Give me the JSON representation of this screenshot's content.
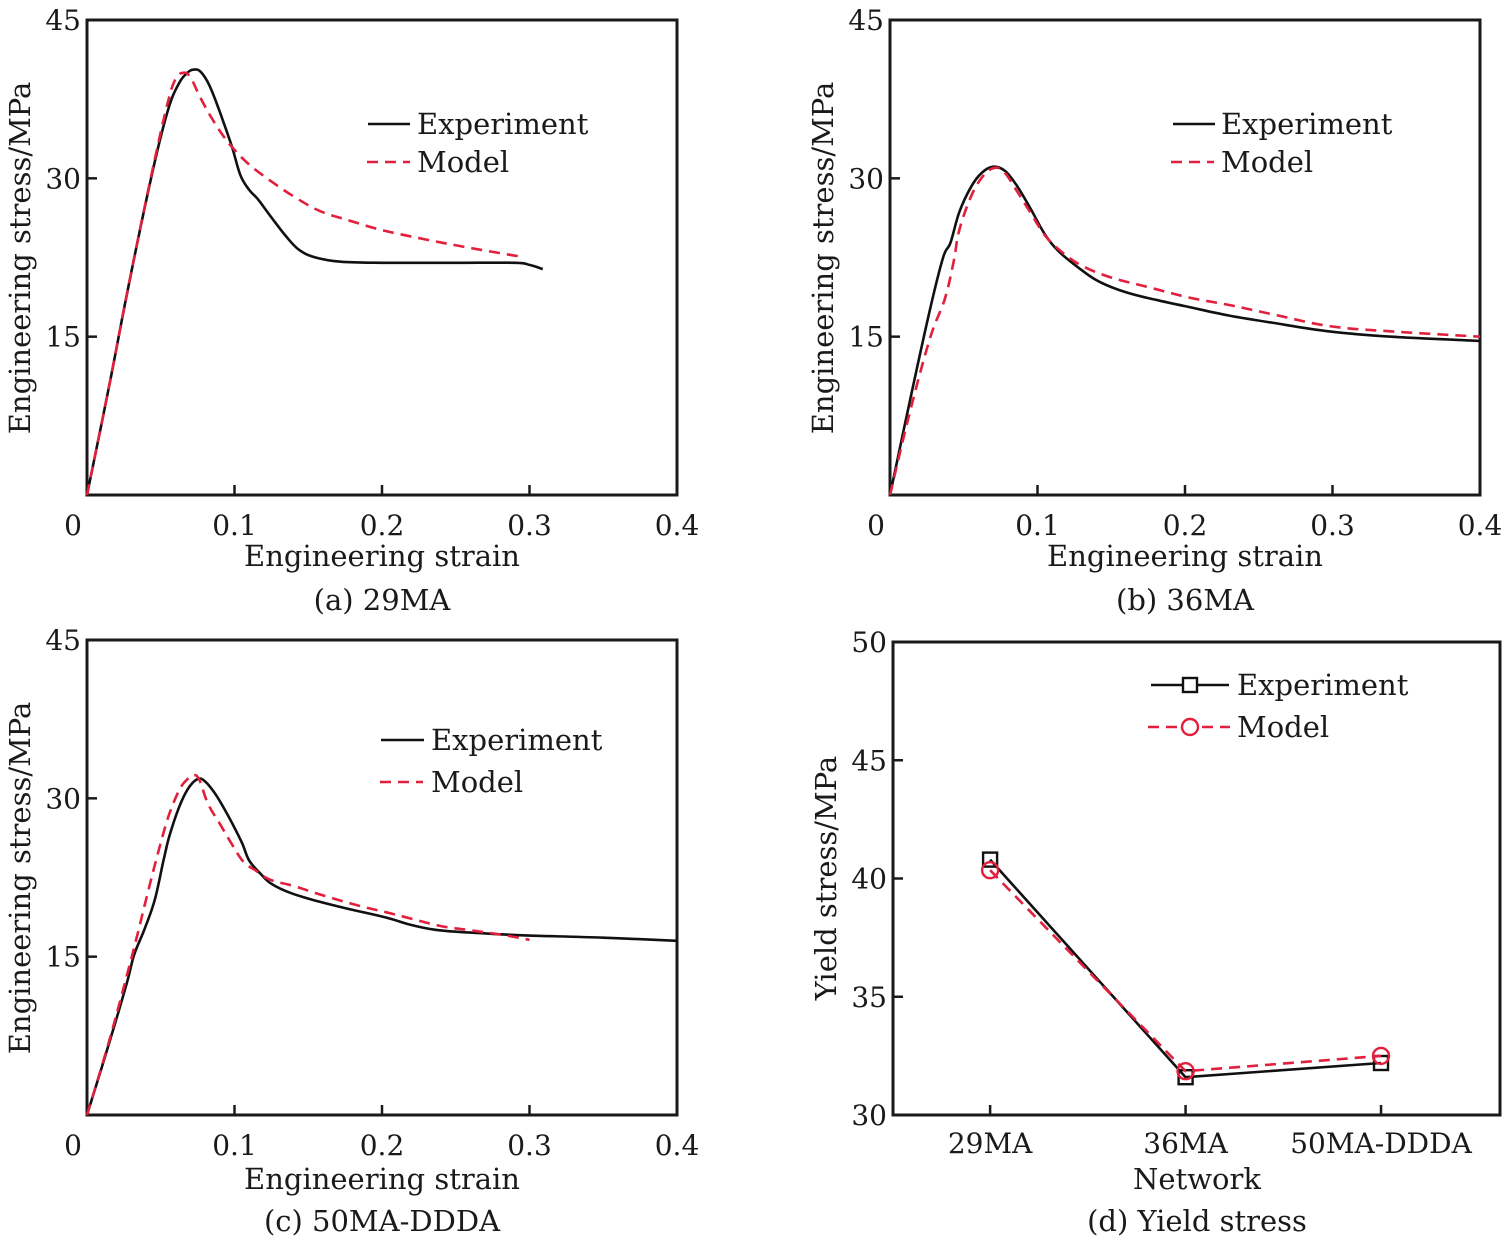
{
  "colors": {
    "experiment": "#111111",
    "model": "#e21f3c",
    "frame": "#1a1a1a"
  },
  "chart_data": [
    {
      "id": "a",
      "type": "line",
      "caption": "(a) 29MA",
      "xlabel": "Engineering strain",
      "ylabel": "Engineering stress/MPa",
      "xlim": [
        0,
        0.4
      ],
      "ylim": [
        0,
        45
      ],
      "xticks": [
        0,
        0.1,
        0.2,
        0.3,
        0.4
      ],
      "xtick_labels": [
        "0",
        "0.1",
        "0.2",
        "0.3",
        "0.4"
      ],
      "yticks": [
        15,
        30,
        45
      ],
      "ytick_labels": [
        "15",
        "30",
        "45"
      ],
      "grid": false,
      "legend_position": "upper-right",
      "legend": [
        "Experiment",
        "Model"
      ],
      "series": [
        {
          "name": "Experiment",
          "style": "solid",
          "x": [
            0,
            0.015,
            0.029,
            0.045,
            0.055,
            0.062,
            0.068,
            0.0725,
            0.077,
            0.083,
            0.09,
            0.098,
            0.104,
            0.11,
            0.116,
            0.125,
            0.135,
            0.144,
            0.155,
            0.172,
            0.2,
            0.25,
            0.29,
            0.3,
            0.309
          ],
          "y": [
            0,
            10.3,
            20.4,
            31.0,
            36.5,
            38.9,
            40.0,
            40.3,
            40.1,
            38.8,
            36.3,
            33.1,
            30.3,
            28.9,
            28.0,
            26.3,
            24.5,
            23.2,
            22.5,
            22.1,
            22.0,
            22.0,
            22.0,
            21.8,
            21.4
          ]
        },
        {
          "name": "Model",
          "style": "dashed",
          "x": [
            0,
            0.015,
            0.029,
            0.045,
            0.055,
            0.06,
            0.065,
            0.07,
            0.077,
            0.085,
            0.093,
            0.1,
            0.11,
            0.124,
            0.14,
            0.158,
            0.178,
            0.2,
            0.23,
            0.26,
            0.293
          ],
          "y": [
            0,
            10.3,
            20.4,
            31.2,
            37.3,
            39.4,
            40.0,
            39.6,
            37.6,
            35.6,
            33.9,
            32.7,
            31.3,
            29.8,
            28.3,
            26.9,
            26.0,
            25.1,
            24.2,
            23.4,
            22.6
          ]
        }
      ]
    },
    {
      "id": "b",
      "type": "line",
      "caption": "(b) 36MA",
      "xlabel": "Engineering strain",
      "ylabel": "Engineering stress/MPa",
      "xlim": [
        0,
        0.4
      ],
      "ylim": [
        0,
        45
      ],
      "xticks": [
        0,
        0.1,
        0.2,
        0.3,
        0.4
      ],
      "xtick_labels": [
        "0",
        "0.1",
        "0.2",
        "0.3",
        "0.4"
      ],
      "yticks": [
        15,
        30,
        45
      ],
      "ytick_labels": [
        "15",
        "30",
        "45"
      ],
      "grid": false,
      "legend_position": "upper-right",
      "legend": [
        "Experiment",
        "Model"
      ],
      "series": [
        {
          "name": "Experiment",
          "style": "solid",
          "x": [
            0,
            0.013,
            0.027,
            0.036,
            0.041,
            0.047,
            0.055,
            0.062,
            0.07,
            0.078,
            0.086,
            0.095,
            0.105,
            0.115,
            0.13,
            0.142,
            0.16,
            0.18,
            0.203,
            0.23,
            0.26,
            0.298,
            0.34,
            0.4
          ],
          "y": [
            0,
            8.6,
            17.5,
            22.5,
            23.9,
            26.8,
            29.2,
            30.5,
            31.1,
            30.7,
            29.3,
            27.2,
            24.7,
            23.0,
            21.3,
            20.2,
            19.2,
            18.5,
            17.8,
            17.0,
            16.3,
            15.5,
            15.0,
            14.6
          ]
        },
        {
          "name": "Model",
          "style": "dashed",
          "x": [
            0,
            0.013,
            0.027,
            0.037,
            0.043,
            0.047,
            0.055,
            0.063,
            0.071,
            0.078,
            0.086,
            0.095,
            0.105,
            0.115,
            0.129,
            0.15,
            0.175,
            0.203,
            0.23,
            0.26,
            0.298,
            0.34,
            0.4
          ],
          "y": [
            0,
            7.6,
            14.8,
            18.5,
            22.0,
            25.1,
            28.3,
            30.2,
            31.0,
            30.5,
            28.8,
            26.8,
            24.6,
            23.2,
            21.8,
            20.6,
            19.7,
            18.7,
            18.0,
            17.1,
            16.0,
            15.5,
            15.0
          ]
        }
      ]
    },
    {
      "id": "c",
      "type": "line",
      "caption": "(c) 50MA-DDDA",
      "xlabel": "Engineering strain",
      "ylabel": "Engineering stress/MPa",
      "xlim": [
        0,
        0.4
      ],
      "ylim": [
        0,
        45
      ],
      "xticks": [
        0,
        0.1,
        0.2,
        0.3,
        0.4
      ],
      "xtick_labels": [
        "0",
        "0.1",
        "0.2",
        "0.3",
        "0.4"
      ],
      "yticks": [
        15,
        30,
        45
      ],
      "ytick_labels": [
        "15",
        "30",
        "45"
      ],
      "grid": false,
      "legend_position": "upper-right",
      "legend": [
        "Experiment",
        "Model"
      ],
      "series": [
        {
          "name": "Experiment",
          "style": "solid",
          "x": [
            0,
            0.015,
            0.027,
            0.032,
            0.039,
            0.046,
            0.052,
            0.056,
            0.062,
            0.068,
            0.0746,
            0.08,
            0.088,
            0.097,
            0.105,
            0.11,
            0.118,
            0.124,
            0.135,
            0.15,
            0.175,
            0.203,
            0.22,
            0.239,
            0.27,
            0.3,
            0.35,
            0.4
          ],
          "y": [
            0,
            6.8,
            12.5,
            15.2,
            17.6,
            20.4,
            24.2,
            26.5,
            29.0,
            30.8,
            31.8,
            31.6,
            30.2,
            28.0,
            25.8,
            24.1,
            22.8,
            22.0,
            21.2,
            20.5,
            19.6,
            18.7,
            18.0,
            17.5,
            17.2,
            17.0,
            16.8,
            16.5
          ]
        },
        {
          "name": "Model",
          "style": "dashed",
          "x": [
            0,
            0.015,
            0.027,
            0.034,
            0.042,
            0.05,
            0.056,
            0.063,
            0.068,
            0.072,
            0.076,
            0.082,
            0.09,
            0.098,
            0.106,
            0.114,
            0.124,
            0.14,
            0.16,
            0.185,
            0.203,
            0.22,
            0.24,
            0.26,
            0.28,
            0.3
          ],
          "y": [
            0,
            7.0,
            13.2,
            17.0,
            21.5,
            25.8,
            28.6,
            30.9,
            31.8,
            32.2,
            31.8,
            29.5,
            27.6,
            25.7,
            24.0,
            23.2,
            22.3,
            21.7,
            20.8,
            19.8,
            19.2,
            18.6,
            17.9,
            17.5,
            17.1,
            16.6
          ]
        }
      ]
    },
    {
      "id": "d",
      "type": "line",
      "caption": "(d) Yield stress",
      "xlabel": "Network",
      "ylabel": "Yield stress/MPa",
      "categories": [
        "29MA",
        "36MA",
        "50MA-DDDA"
      ],
      "ylim": [
        30,
        50
      ],
      "yticks": [
        30,
        35,
        40,
        45,
        50
      ],
      "ytick_labels": [
        "30",
        "35",
        "40",
        "45",
        "50"
      ],
      "grid": false,
      "legend_position": "upper-right",
      "legend": [
        "Experiment",
        "Model"
      ],
      "series": [
        {
          "name": "Experiment",
          "style": "solid",
          "marker": "square",
          "values": [
            40.8,
            31.6,
            32.2
          ]
        },
        {
          "name": "Model",
          "style": "dashed",
          "marker": "circle",
          "values": [
            40.35,
            31.85,
            32.5
          ]
        }
      ]
    }
  ]
}
